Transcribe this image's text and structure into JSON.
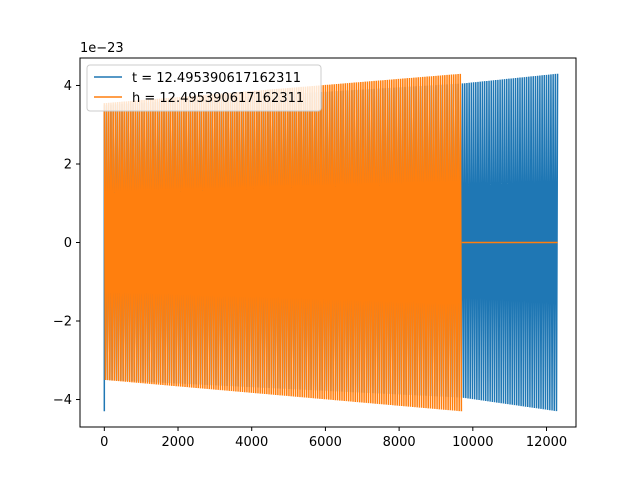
{
  "chart_data": {
    "type": "line",
    "title": "",
    "xlabel": "",
    "ylabel": "",
    "y_offset_text": "1e−23",
    "xlim": [
      -660,
      12800
    ],
    "ylim": [
      -4.7,
      4.7
    ],
    "x_ticks": [
      0,
      2000,
      4000,
      6000,
      8000,
      10000,
      12000
    ],
    "x_tick_labels": [
      "0",
      "2000",
      "4000",
      "6000",
      "8000",
      "10000",
      "12000"
    ],
    "y_ticks": [
      -4,
      -2,
      0,
      2,
      4
    ],
    "y_tick_labels": [
      "−4",
      "−2",
      "0",
      "2",
      "4"
    ],
    "grid": false,
    "legend_position": "upper-left",
    "series": [
      {
        "name": "t = 12.495390617162311",
        "color": "#1f77b4",
        "x_range": [
          0,
          12300
        ],
        "envelope": {
          "x": [
            0,
            9700,
            12300
          ],
          "upper": [
            3.5,
            4.05,
            4.3
          ],
          "lower": [
            -3.5,
            -3.95,
            -4.3
          ]
        },
        "initial_spike": {
          "x": 0,
          "y": -4.3
        }
      },
      {
        "name": "h = 12.495390617162311",
        "color": "#ff7f0e",
        "x_range": [
          0,
          9700
        ],
        "envelope": {
          "x": [
            0,
            9700
          ],
          "upper": [
            3.55,
            4.3
          ],
          "lower": [
            -3.5,
            -4.3
          ]
        },
        "flat_tail": {
          "x": [
            9700,
            12300
          ],
          "y": 0
        }
      }
    ]
  }
}
